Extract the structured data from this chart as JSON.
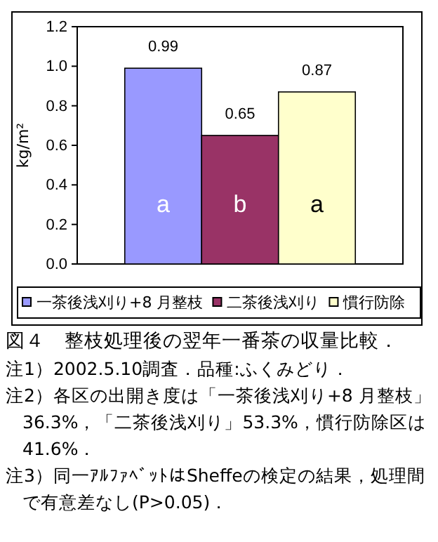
{
  "chart_data": {
    "type": "bar",
    "ylabel": "kg/m²",
    "title": "図４　整枝処理後の翌年一番茶の収量比較．",
    "categories": [
      null
    ],
    "series": [
      {
        "name": "一茶後浅刈り+8 月整枝",
        "color": "#9999ff",
        "values": [
          0.99
        ]
      },
      {
        "name": "二茶後浅刈り",
        "color": "#993366",
        "values": [
          0.65
        ]
      },
      {
        "name": "慣行防除",
        "color": "#ffffcc",
        "values": [
          0.87
        ]
      }
    ],
    "ylim": [
      0,
      1.2
    ],
    "yticks": [
      {
        "value": 0,
        "label": "0.0"
      },
      {
        "value": 0.2,
        "label": "0.2"
      },
      {
        "value": 0.4,
        "label": "0.4"
      },
      {
        "value": 0.6,
        "label": "0.6"
      },
      {
        "value": 0.8,
        "label": "0.8"
      },
      {
        "value": 1,
        "label": "1.0"
      },
      {
        "value": 1.2,
        "label": "1.2"
      }
    ],
    "data_labels": true,
    "legend": "bottom",
    "grid": false,
    "annotations": [
      "a",
      "b",
      "a",
      "注1）2002.5.10調査．品種:ふくみどり．",
      "注2）各区の出開き度は「一茶後浅刈り+8 月整枝」36.3%，「二茶後浅刈り」53.3%，慣行防除区は41.6%．",
      "注3）同一ｱﾙﾌｧﾍﾞｯﾄはSheffeの検定の結果，処理間で有意差なし(P>0.05)．"
    ]
  }
}
